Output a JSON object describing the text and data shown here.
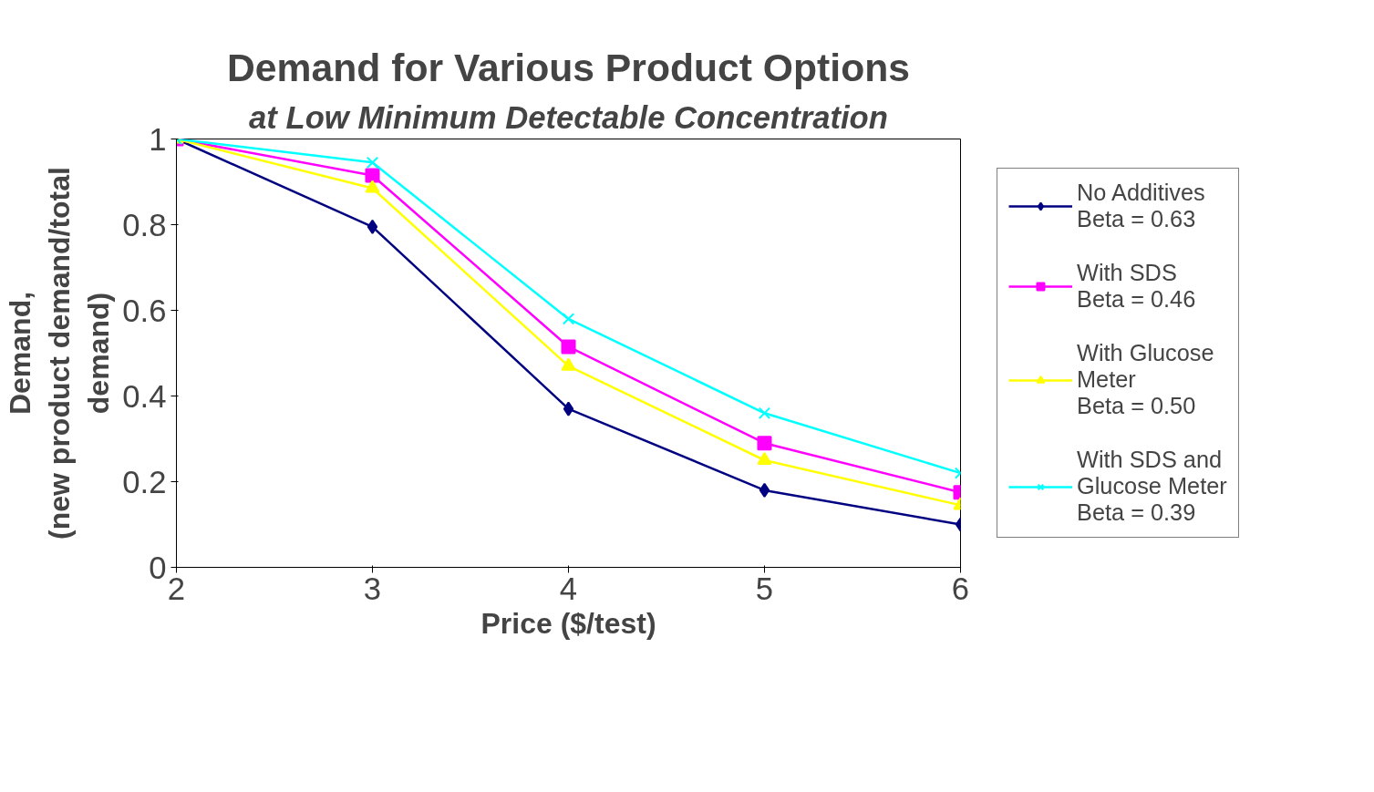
{
  "chart_data": {
    "type": "line",
    "title": "Demand for Various Product Options",
    "subtitle": "at Low Minimum Detectable Concentration",
    "xlabel": "Price ($/test)",
    "ylabel": "Demand,\n(new product demand/total\ndemand)",
    "x": [
      2,
      3,
      4,
      5,
      6
    ],
    "xlim": [
      2,
      6
    ],
    "xticks": [
      2,
      3,
      4,
      5,
      6
    ],
    "ylim": [
      0,
      1
    ],
    "yticks": [
      0,
      0.2,
      0.4,
      0.6,
      0.8,
      1
    ],
    "grid": false,
    "legend": "right",
    "line_style": "solid",
    "series": [
      {
        "name": "No Additives\nBeta = 0.63",
        "color": "#000080",
        "marker": "diamond",
        "values": [
          1,
          0.795,
          0.37,
          0.18,
          0.1
        ]
      },
      {
        "name": "With SDS\nBeta = 0.46",
        "color": "#ff00ff",
        "marker": "square",
        "values": [
          1,
          0.915,
          0.515,
          0.29,
          0.175
        ]
      },
      {
        "name": "With Glucose\nMeter\nBeta = 0.50",
        "color": "#ffff00",
        "marker": "triangle",
        "values": [
          1,
          0.885,
          0.47,
          0.25,
          0.145
        ]
      },
      {
        "name": "With SDS and\nGlucose Meter\nBeta = 0.39",
        "color": "#00ffff",
        "marker": "x",
        "values": [
          1,
          0.945,
          0.58,
          0.36,
          0.22
        ]
      }
    ]
  }
}
